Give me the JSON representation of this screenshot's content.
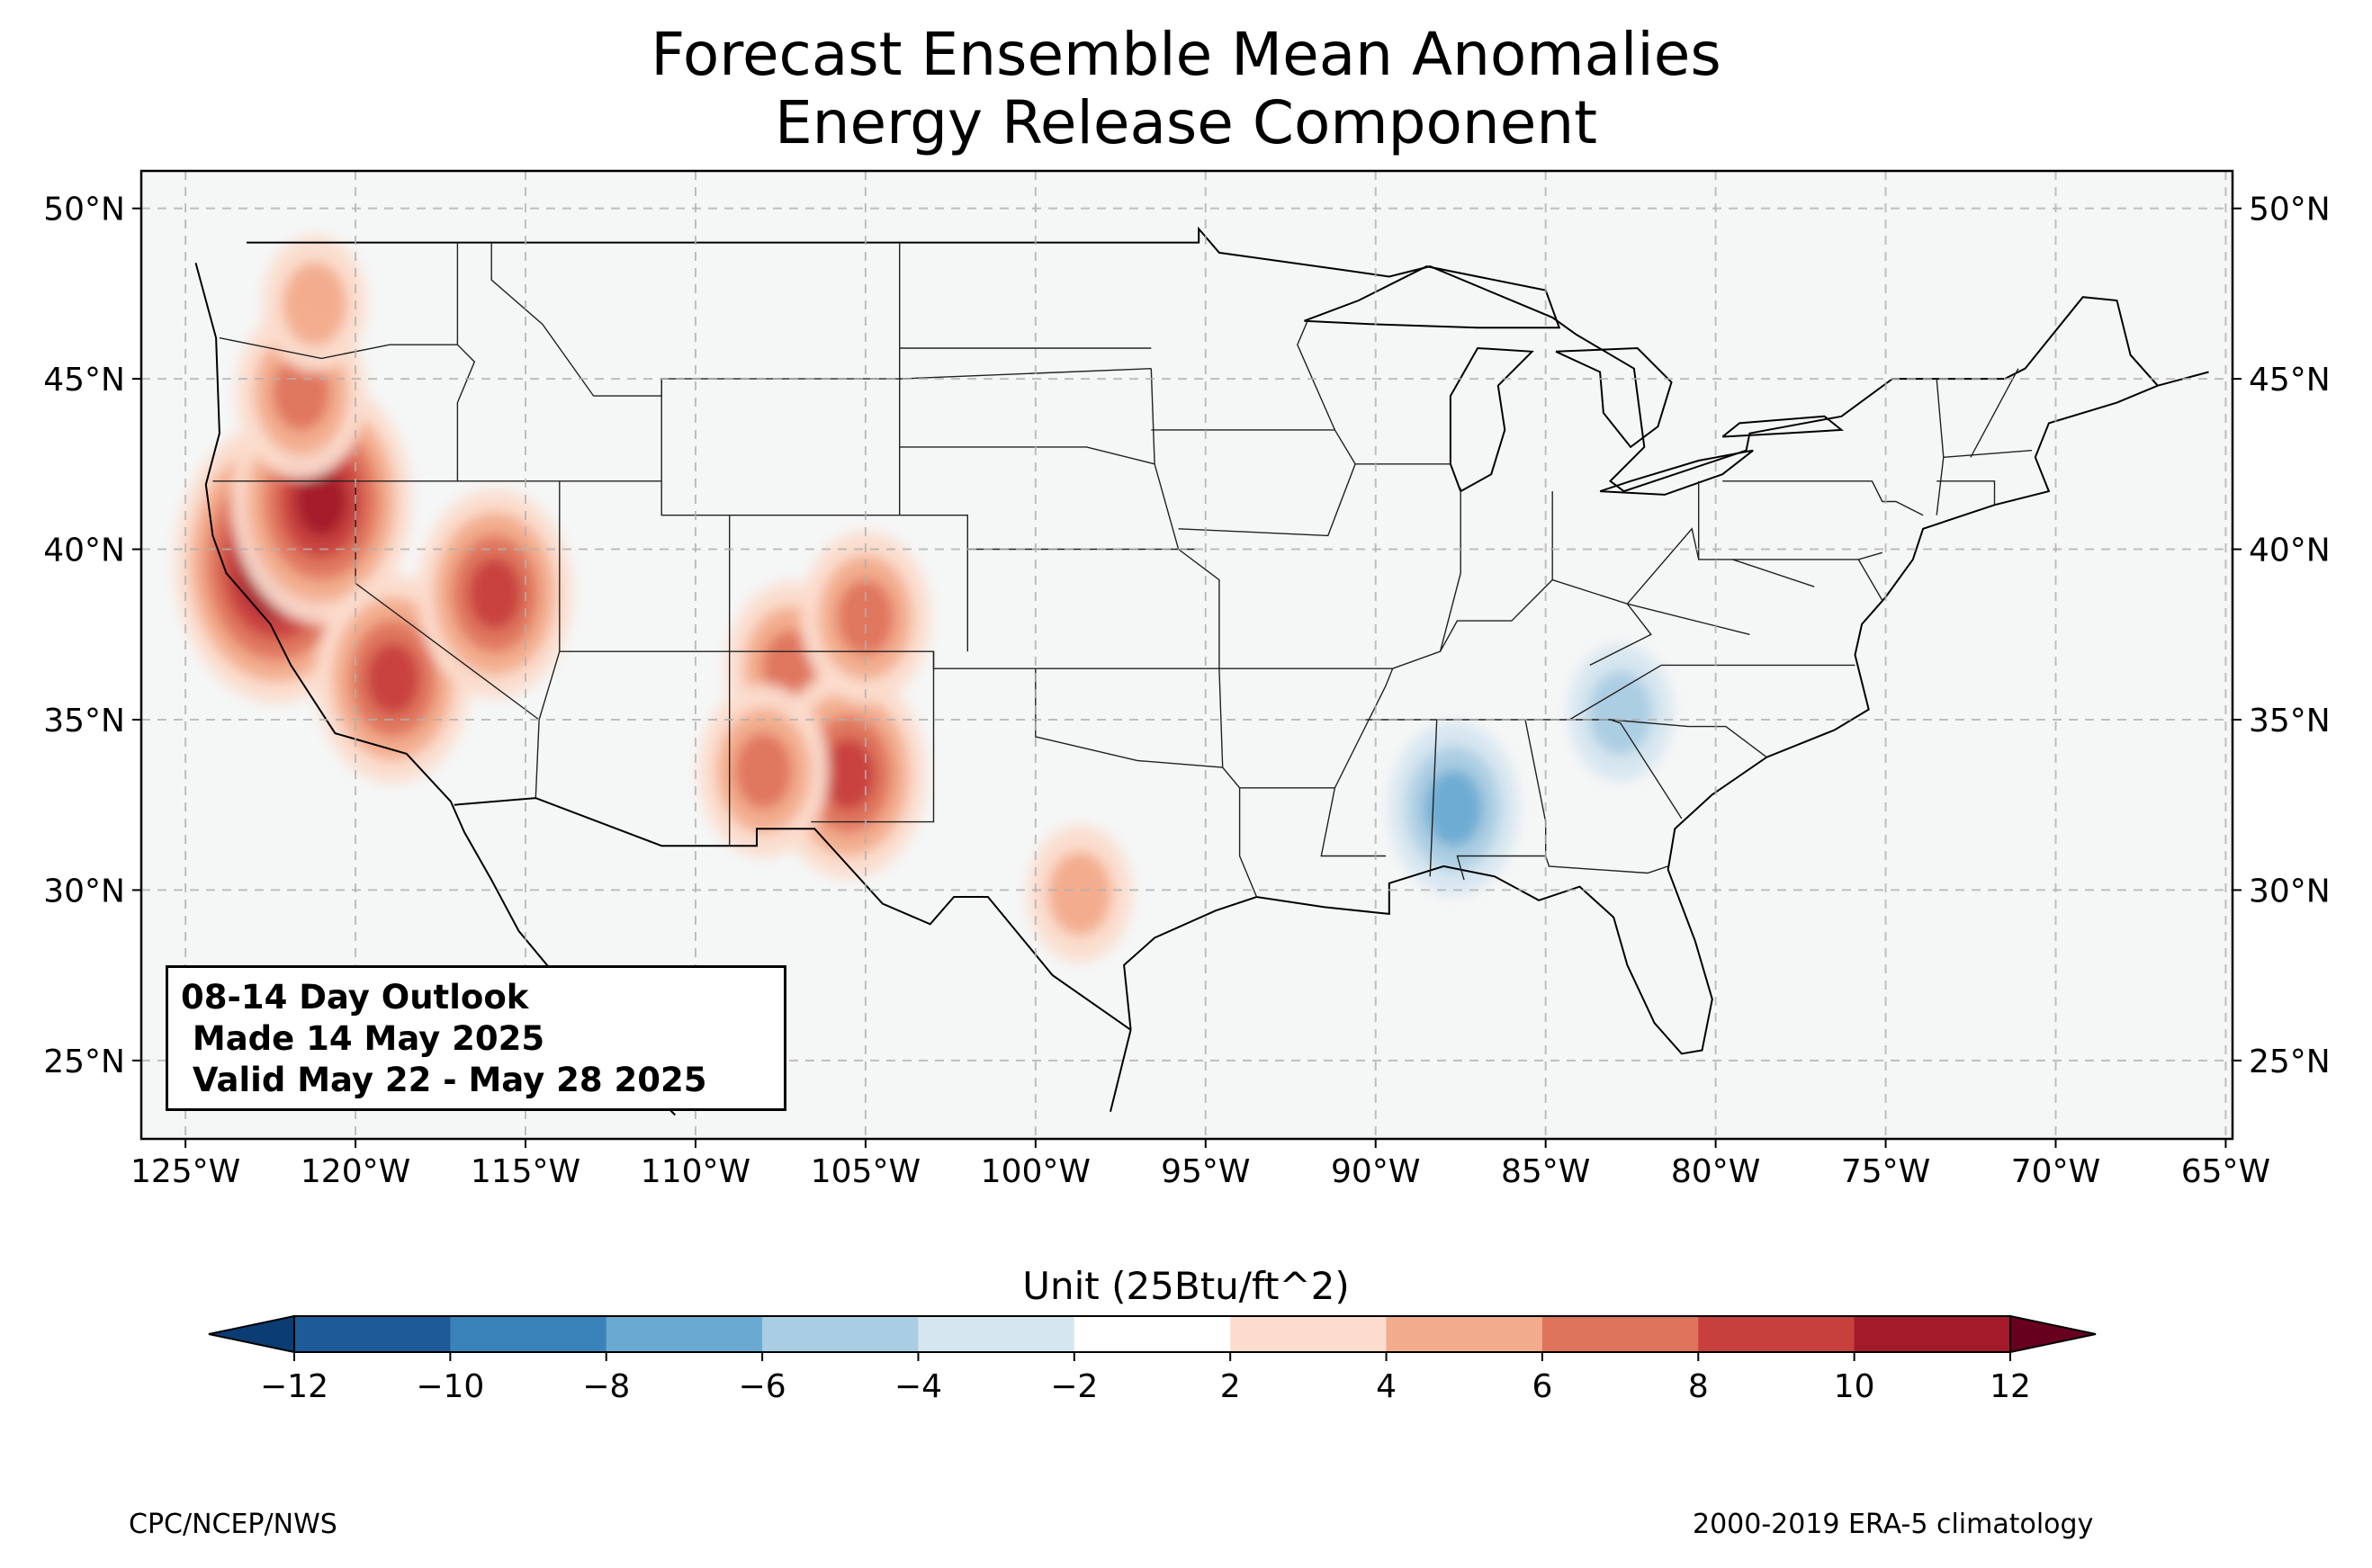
{
  "title": {
    "line1": "Forecast Ensemble Mean Anomalies",
    "line2": "Energy Release Component"
  },
  "map": {
    "projection": "lat-lon",
    "extent": {
      "lon": [
        -126.3,
        -64.8
      ],
      "lat": [
        22.7,
        51.1
      ]
    },
    "background": "#f5f6f6",
    "grid": "dashed",
    "lon_ticks": [
      {
        "value": -125,
        "label": "125°W"
      },
      {
        "value": -120,
        "label": "120°W"
      },
      {
        "value": -115,
        "label": "115°W"
      },
      {
        "value": -110,
        "label": "110°W"
      },
      {
        "value": -105,
        "label": "105°W"
      },
      {
        "value": -100,
        "label": "100°W"
      },
      {
        "value": -95,
        "label": "95°W"
      },
      {
        "value": -90,
        "label": "90°W"
      },
      {
        "value": -85,
        "label": "85°W"
      },
      {
        "value": -80,
        "label": "80°W"
      },
      {
        "value": -75,
        "label": "75°W"
      },
      {
        "value": -70,
        "label": "70°W"
      },
      {
        "value": -65,
        "label": "65°W"
      }
    ],
    "lat_ticks": [
      {
        "value": 50,
        "label": "50°N"
      },
      {
        "value": 45,
        "label": "45°N"
      },
      {
        "value": 40,
        "label": "40°N"
      },
      {
        "value": 35,
        "label": "35°N"
      },
      {
        "value": 30,
        "label": "30°N"
      },
      {
        "value": 25,
        "label": "25°N"
      }
    ],
    "anomaly_areas": [
      {
        "region": "Northern California",
        "lon": -122.3,
        "lat": 39.6,
        "level": 12
      },
      {
        "region": "Northern Sierra Nevada",
        "lon": -121.0,
        "lat": 41.4,
        "level": 10
      },
      {
        "region": "Oregon Cascades",
        "lon": -121.6,
        "lat": 44.6,
        "level": 6
      },
      {
        "region": "Washington Cascades",
        "lon": -121.2,
        "lat": 47.2,
        "level": 4
      },
      {
        "region": "Southern Sierra Nevada",
        "lon": -118.9,
        "lat": 36.2,
        "level": 8
      },
      {
        "region": "Central Nevada",
        "lon": -115.9,
        "lat": 38.7,
        "level": 8
      },
      {
        "region": "Colorado Plateau",
        "lon": -107.2,
        "lat": 36.5,
        "level": 6
      },
      {
        "region": "Southwest New Mexico",
        "lon": -105.5,
        "lat": 33.4,
        "level": 8
      },
      {
        "region": "Central Arizona",
        "lon": -108.0,
        "lat": 33.5,
        "level": 6
      },
      {
        "region": "Southern Colorado",
        "lon": -105.0,
        "lat": 38.0,
        "level": 6
      },
      {
        "region": "South Texas",
        "lon": -98.7,
        "lat": 29.9,
        "level": 4
      },
      {
        "region": "Southeast Gulf States",
        "lon": -87.7,
        "lat": 32.4,
        "level": -6
      },
      {
        "region": "Southern Appalachians",
        "lon": -82.8,
        "lat": 35.2,
        "level": -4
      }
    ],
    "colors": {
      "neg12": "#0b3c73",
      "neg10": "#1d5a97",
      "neg8": "#3a83ba",
      "neg6": "#6aaad2",
      "neg4": "#a9cee3",
      "neg2": "#d6e6f0",
      "near_zero": "#f5f6f6",
      "pos2": "#fbdccd",
      "pos4": "#f2ab8b",
      "pos6": "#de745c",
      "pos8": "#c7403e",
      "pos10": "#a31a2a",
      "pos12": "#67001f"
    }
  },
  "colorbar": {
    "title": "Unit (25Btu/ft^2)",
    "ticks": [
      "−12",
      "−10",
      "−8",
      "−6",
      "−4",
      "−2",
      "2",
      "4",
      "6",
      "8",
      "10",
      "12"
    ],
    "colors": [
      "#1d5a97",
      "#3a83ba",
      "#6aaad2",
      "#a9cee3",
      "#d6e6f0",
      "#ffffff",
      "#fbdccd",
      "#f2ab8b",
      "#de745c",
      "#c7403e",
      "#a31a2a"
    ],
    "under_color": "#0b3c73",
    "over_color": "#67001f"
  },
  "outlook_box": {
    "line1": "08-14 Day Outlook",
    "line2": " Made 14 May 2025",
    "line3": " Valid May 22 - May 28 2025"
  },
  "credits": {
    "left": "CPC/NCEP/NWS",
    "right": "2000-2019 ERA-5 climatology"
  }
}
